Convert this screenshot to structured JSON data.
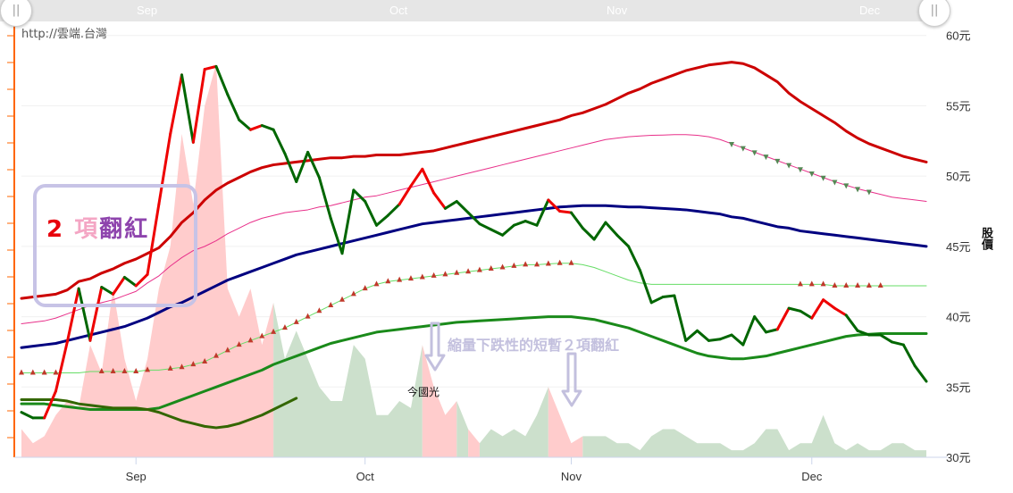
{
  "watermark": "http://雲端.台灣",
  "legend": {
    "num": "2",
    "word1": "項",
    "word2": "翻紅"
  },
  "annotation": "縮量下跌性的短暫２項翻紅",
  "event_label": "今國光",
  "navigator": {
    "months": [
      "Sep",
      "Oct",
      "Nov",
      "Dec"
    ],
    "handle_glyph": "||"
  },
  "colors": {
    "price_up": "#ee0000",
    "price_down": "#006600",
    "ma_red": "#cc0000",
    "ma_pink": "#e8308a",
    "ma_navy": "#000080",
    "ma_green": "#1a8a1a",
    "ma_lightgreen": "#66dd66",
    "ma_olive": "#336600",
    "vol_red": "#ffcccc",
    "vol_green": "#cce0cc",
    "marker_red": "#c0392b",
    "marker_green": "#558855",
    "axis_orange": "#ff6600"
  },
  "chart_data": {
    "type": "line",
    "x_axis": {
      "tick_labels": [
        "Sep",
        "Oct",
        "Nov",
        "Dec"
      ],
      "tick_index": [
        10,
        30,
        48,
        69
      ]
    },
    "y_axis": {
      "label": "股價",
      "unit": "元",
      "ticks": [
        30,
        35,
        40,
        45,
        50,
        55,
        60
      ],
      "ylim": [
        30,
        61
      ]
    },
    "price": [
      33.2,
      32.8,
      32.8,
      34.7,
      38.2,
      42.0,
      38.3,
      42.1,
      41.6,
      42.8,
      42.2,
      43.0,
      48.0,
      53.0,
      57.2,
      52.4,
      57.6,
      57.8,
      55.8,
      54.0,
      53.3,
      53.6,
      53.3,
      51.6,
      49.6,
      51.7,
      49.9,
      47.0,
      44.5,
      49.0,
      48.2,
      46.5,
      47.2,
      48.0,
      49.3,
      50.5,
      48.8,
      47.7,
      48.2,
      47.4,
      46.6,
      46.2,
      45.8,
      46.5,
      46.8,
      46.5,
      48.3,
      47.5,
      47.4,
      46.3,
      45.5,
      46.7,
      45.8,
      45.0,
      43.3,
      41.0,
      41.4,
      41.5,
      38.3,
      39.0,
      38.3,
      38.4,
      38.7,
      38.0,
      40.0,
      38.9,
      39.1,
      40.6,
      40.4,
      39.9,
      41.2,
      40.6,
      40.1,
      39.0,
      38.7,
      38.7,
      38.2,
      38.0,
      36.5,
      35.4
    ],
    "price_up_flags": [
      1,
      0,
      0,
      1,
      1,
      1,
      0,
      1,
      0,
      1,
      0,
      1,
      1,
      1,
      1,
      0,
      1,
      1,
      0,
      0,
      0,
      1,
      0,
      0,
      0,
      0,
      0,
      0,
      0,
      0,
      0,
      0,
      0,
      0,
      1,
      1,
      1,
      1,
      0,
      0,
      0,
      0,
      0,
      0,
      0,
      0,
      0,
      1,
      1,
      0,
      0,
      0,
      0,
      0,
      0,
      0,
      0,
      0,
      0,
      0,
      0,
      0,
      0,
      0,
      0,
      0,
      0,
      1,
      0,
      0,
      1,
      1,
      1,
      0,
      0,
      0,
      0,
      0,
      0,
      0
    ],
    "volume_heights": [
      32,
      31,
      31.5,
      33,
      34,
      33.5,
      38,
      36,
      42,
      37,
      34,
      37,
      42,
      45,
      53,
      48,
      55,
      58,
      42,
      40,
      42,
      38,
      41,
      37,
      39,
      37,
      35,
      34,
      34,
      38,
      37,
      33,
      33,
      34,
      33.5,
      38,
      35,
      33,
      34,
      32,
      31,
      32,
      31.5,
      32,
      31.5,
      33,
      35,
      33,
      31,
      31.5,
      31.5,
      31.5,
      31,
      31,
      30.5,
      31.5,
      32,
      32,
      31.5,
      31,
      31,
      31,
      30.5,
      30.5,
      31,
      32,
      32,
      30.5,
      31,
      31,
      33,
      31,
      30.5,
      31,
      30.5,
      30.5,
      31,
      31,
      30.5,
      30.5
    ],
    "volume_up_flags": [
      1,
      1,
      1,
      1,
      1,
      1,
      1,
      1,
      1,
      1,
      1,
      1,
      1,
      1,
      1,
      1,
      1,
      1,
      1,
      1,
      1,
      1,
      0,
      0,
      0,
      0,
      0,
      0,
      0,
      0,
      0,
      0,
      0,
      0,
      0,
      1,
      1,
      1,
      0,
      1,
      0,
      0,
      0,
      0,
      0,
      0,
      1,
      1,
      1,
      0,
      0,
      0,
      0,
      0,
      0,
      0,
      0,
      0,
      0,
      0,
      0,
      0,
      0,
      0,
      0,
      0,
      0,
      0,
      0,
      0,
      0,
      0,
      0,
      0,
      0,
      0,
      0,
      0,
      0,
      0
    ],
    "series": [
      {
        "values": [
          41.3,
          41.4,
          41.5,
          41.6,
          41.9,
          42.5,
          42.7,
          43.1,
          43.4,
          43.8,
          44.1,
          44.5,
          44.9,
          45.7,
          46.7,
          47.4,
          48.3,
          49.0,
          49.5,
          49.9,
          50.3,
          50.6,
          50.8,
          50.9,
          51.0,
          51.1,
          51.2,
          51.3,
          51.3,
          51.4,
          51.4,
          51.5,
          51.5,
          51.5,
          51.6,
          51.7,
          51.8,
          52.0,
          52.2,
          52.4,
          52.6,
          52.8,
          53.0,
          53.2,
          53.4,
          53.6,
          53.8,
          54.0,
          54.3,
          54.5,
          54.8,
          55.1,
          55.5,
          55.9,
          56.2,
          56.6,
          56.9,
          57.2,
          57.5,
          57.7,
          57.9,
          58.0,
          58.1,
          58.0,
          57.7,
          57.2,
          56.7,
          55.9,
          55.3,
          54.8,
          54.3,
          53.8,
          53.2,
          52.7,
          52.3,
          52.0,
          51.7,
          51.4,
          51.2,
          51.0
        ],
        "color": "#cc0000"
      },
      {
        "values": [
          39.5,
          39.6,
          39.7,
          39.9,
          40.2,
          40.5,
          40.8,
          41.0,
          41.2,
          41.5,
          41.8,
          42.4,
          42.9,
          43.6,
          44.2,
          44.7,
          45.0,
          45.4,
          45.9,
          46.3,
          46.7,
          47.0,
          47.2,
          47.4,
          47.5,
          47.6,
          47.8,
          47.9,
          48.1,
          48.3,
          48.5,
          48.6,
          48.8,
          49.0,
          49.2,
          49.4,
          49.6,
          49.8,
          50.0,
          50.2,
          50.4,
          50.6,
          50.8,
          51.0,
          51.2,
          51.4,
          51.6,
          51.8,
          52.0,
          52.2,
          52.4,
          52.6,
          52.7,
          52.8,
          52.85,
          52.9,
          52.92,
          52.95,
          52.95,
          52.9,
          52.8,
          52.6,
          52.3,
          52.0,
          51.7,
          51.4,
          51.1,
          50.8,
          50.5,
          50.2,
          49.9,
          49.6,
          49.35,
          49.1,
          48.9,
          48.7,
          48.5,
          48.4,
          48.3,
          48.2
        ],
        "color": "#e8308a"
      },
      {
        "values": [
          37.8,
          37.9,
          38.0,
          38.1,
          38.3,
          38.5,
          38.7,
          38.9,
          39.1,
          39.3,
          39.6,
          39.9,
          40.3,
          40.7,
          41.0,
          41.4,
          41.8,
          42.2,
          42.6,
          42.9,
          43.2,
          43.5,
          43.8,
          44.1,
          44.4,
          44.6,
          44.8,
          45.0,
          45.2,
          45.4,
          45.6,
          45.8,
          46.0,
          46.2,
          46.4,
          46.6,
          46.7,
          46.8,
          46.9,
          47.0,
          47.1,
          47.2,
          47.3,
          47.4,
          47.5,
          47.6,
          47.7,
          47.8,
          47.85,
          47.9,
          47.9,
          47.9,
          47.85,
          47.8,
          47.8,
          47.75,
          47.7,
          47.65,
          47.6,
          47.5,
          47.4,
          47.3,
          47.1,
          47.0,
          46.8,
          46.6,
          46.4,
          46.3,
          46.1,
          46.0,
          45.9,
          45.8,
          45.7,
          45.6,
          45.5,
          45.4,
          45.3,
          45.2,
          45.1,
          45.0
        ],
        "color": "#000080"
      },
      {
        "values": [
          33.8,
          33.8,
          33.8,
          33.7,
          33.6,
          33.5,
          33.4,
          33.4,
          33.4,
          33.4,
          33.4,
          33.4,
          33.5,
          33.8,
          34.1,
          34.4,
          34.7,
          35.0,
          35.3,
          35.6,
          35.9,
          36.2,
          36.6,
          36.9,
          37.2,
          37.5,
          37.8,
          38.1,
          38.3,
          38.5,
          38.7,
          38.9,
          39.0,
          39.1,
          39.2,
          39.3,
          39.4,
          39.5,
          39.6,
          39.65,
          39.7,
          39.75,
          39.8,
          39.85,
          39.9,
          39.95,
          40.0,
          40.0,
          40.0,
          39.9,
          39.8,
          39.6,
          39.4,
          39.2,
          38.9,
          38.6,
          38.3,
          38.0,
          37.7,
          37.4,
          37.2,
          37.1,
          37.0,
          37.0,
          37.1,
          37.2,
          37.4,
          37.6,
          37.8,
          38.0,
          38.2,
          38.4,
          38.6,
          38.7,
          38.75,
          38.8,
          38.8,
          38.8,
          38.8,
          38.8
        ],
        "color": "#1a8a1a"
      },
      {
        "values": [
          36.0,
          36.0,
          36.0,
          36.0,
          36.0,
          36.0,
          36.1,
          36.1,
          36.1,
          36.1,
          36.1,
          36.2,
          36.2,
          36.3,
          36.4,
          36.6,
          36.8,
          37.2,
          37.6,
          38.0,
          38.3,
          38.6,
          38.9,
          39.2,
          39.6,
          40.0,
          40.4,
          40.8,
          41.2,
          41.6,
          42.0,
          42.3,
          42.5,
          42.6,
          42.7,
          42.8,
          42.9,
          43.0,
          43.1,
          43.2,
          43.3,
          43.4,
          43.5,
          43.6,
          43.7,
          43.7,
          43.75,
          43.8,
          43.8,
          43.7,
          43.5,
          43.2,
          42.9,
          42.6,
          42.4,
          42.3,
          42.3,
          42.3,
          42.3,
          42.3,
          42.3,
          42.3,
          42.3,
          42.3,
          42.3,
          42.3,
          42.3,
          42.3,
          42.3,
          42.3,
          42.3,
          42.2,
          42.2,
          42.2,
          42.2,
          42.2,
          42.2,
          42.2,
          42.2,
          42.2
        ],
        "color": "#66dd66"
      },
      {
        "values": [
          34.1,
          34.1,
          34.1,
          34.1,
          34.0,
          33.8,
          33.7,
          33.6,
          33.5,
          33.5,
          33.5,
          33.4,
          33.2,
          32.9,
          32.6,
          32.4,
          32.2,
          32.1,
          32.2,
          32.4,
          32.7,
          33.0,
          33.4,
          33.8,
          34.2
        ],
        "color": "#336600"
      }
    ],
    "marker_runs": [
      {
        "series": 4,
        "from": 0,
        "to": 3,
        "direction": "up"
      },
      {
        "series": 4,
        "from": 7,
        "to": 11,
        "direction": "up"
      },
      {
        "series": 4,
        "from": 13,
        "to": 48,
        "direction": "up"
      },
      {
        "series": 4,
        "from": 68,
        "to": 75,
        "direction": "up"
      },
      {
        "series": 1,
        "from": 62,
        "to": 74,
        "direction": "down"
      }
    ]
  }
}
